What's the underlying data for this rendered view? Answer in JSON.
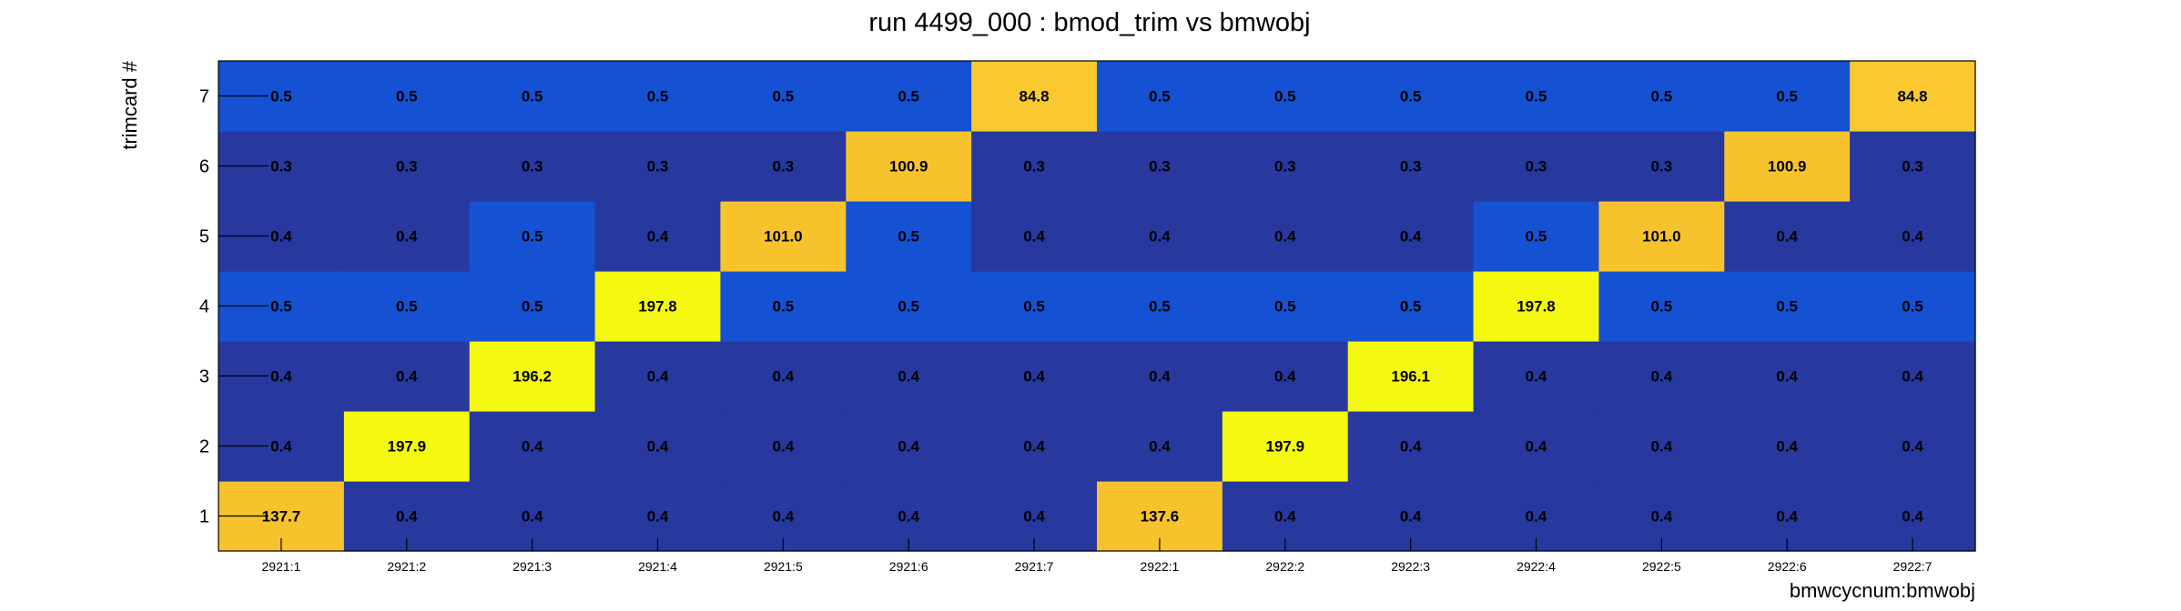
{
  "chart_data": {
    "type": "heatmap",
    "title": "run 4499_000 : bmod_trim vs bmwobj",
    "xlabel": "bmwcycnum:bmwobj",
    "ylabel": "trimcard #",
    "x_categories": [
      "2921:1",
      "2921:2",
      "2921:3",
      "2921:4",
      "2921:5",
      "2921:6",
      "2921:7",
      "2922:1",
      "2922:2",
      "2922:3",
      "2922:4",
      "2922:5",
      "2922:6",
      "2922:7"
    ],
    "y_categories": [
      "1",
      "2",
      "3",
      "4",
      "5",
      "6",
      "7"
    ],
    "cell_labels": [
      [
        "137.7",
        "0.4",
        "0.4",
        "0.4",
        "0.4",
        "0.4",
        "0.4",
        "137.6",
        "0.4",
        "0.4",
        "0.4",
        "0.4",
        "0.4",
        "0.4"
      ],
      [
        "0.4",
        "197.9",
        "0.4",
        "0.4",
        "0.4",
        "0.4",
        "0.4",
        "0.4",
        "197.9",
        "0.4",
        "0.4",
        "0.4",
        "0.4",
        "0.4"
      ],
      [
        "0.4",
        "0.4",
        "196.2",
        "0.4",
        "0.4",
        "0.4",
        "0.4",
        "0.4",
        "0.4",
        "196.1",
        "0.4",
        "0.4",
        "0.4",
        "0.4"
      ],
      [
        "0.5",
        "0.5",
        "0.5",
        "197.8",
        "0.5",
        "0.5",
        "0.5",
        "0.5",
        "0.5",
        "0.5",
        "197.8",
        "0.5",
        "0.5",
        "0.5"
      ],
      [
        "0.4",
        "0.4",
        "0.5",
        "0.4",
        "101.0",
        "0.5",
        "0.4",
        "0.4",
        "0.4",
        "0.4",
        "0.5",
        "101.0",
        "0.4",
        "0.4"
      ],
      [
        "0.3",
        "0.3",
        "0.3",
        "0.3",
        "0.3",
        "100.9",
        "0.3",
        "0.3",
        "0.3",
        "0.3",
        "0.3",
        "0.3",
        "100.9",
        "0.3"
      ],
      [
        "0.5",
        "0.5",
        "0.5",
        "0.5",
        "0.5",
        "0.5",
        "84.8",
        "0.5",
        "0.5",
        "0.5",
        "0.5",
        "0.5",
        "0.5",
        "84.8"
      ]
    ],
    "colors": {
      "dark_blue": "#27399f",
      "medium_blue": "#1452d3",
      "yellow_orange": "#f9c92f",
      "orange_yellow": "#f7c32c",
      "bright_yellow": "#f5f90f",
      "axis": "#000000",
      "background": "#ffffff"
    },
    "grid": false,
    "legend": "none"
  }
}
